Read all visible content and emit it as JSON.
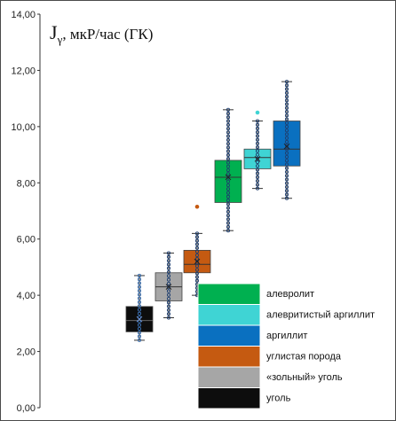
{
  "chart_data": {
    "type": "box",
    "title": {
      "symbol": "J",
      "subscript": "γ",
      "rest": ", мкР/час (ГК)"
    },
    "ylim": [
      0,
      14
    ],
    "yticks": [
      "0,00",
      "2,00",
      "4,00",
      "6,00",
      "8,00",
      "10,00",
      "12,00",
      "14,00"
    ],
    "grid": false,
    "legend_position": "bottom-right",
    "series": [
      {
        "name": "уголь",
        "color": "#0d0d0d",
        "whisker_low": 2.4,
        "q1": 2.7,
        "median": 3.1,
        "q3": 3.6,
        "whisker_high": 4.7,
        "mean": 3.15,
        "outliers": []
      },
      {
        "name": "«зольный» уголь",
        "color": "#a6a6a6",
        "whisker_low": 3.2,
        "q1": 3.8,
        "median": 4.3,
        "q3": 4.8,
        "whisker_high": 5.5,
        "mean": 4.3,
        "outliers": []
      },
      {
        "name": "углистая порода",
        "color": "#c55a11",
        "whisker_low": 4.0,
        "q1": 4.8,
        "median": 5.1,
        "q3": 5.6,
        "whisker_high": 6.2,
        "mean": 5.2,
        "outliers": [
          7.15
        ]
      },
      {
        "name": "алевролит",
        "color": "#00b050",
        "whisker_low": 6.3,
        "q1": 7.3,
        "median": 8.2,
        "q3": 8.8,
        "whisker_high": 10.6,
        "mean": 8.2,
        "outliers": []
      },
      {
        "name": "алевритистый аргиллит",
        "color": "#3fd4d4",
        "whisker_low": 7.8,
        "q1": 8.5,
        "median": 8.9,
        "q3": 9.2,
        "whisker_high": 10.2,
        "mean": 8.85,
        "outliers": [
          10.5
        ]
      },
      {
        "name": "аргиллит",
        "color": "#0a70c0",
        "whisker_low": 7.45,
        "q1": 8.6,
        "median": 9.2,
        "q3": 10.2,
        "whisker_high": 11.6,
        "mean": 9.3,
        "outliers": []
      }
    ],
    "legend_order": [
      {
        "name": "алевролит",
        "color": "#00b050"
      },
      {
        "name": "алевритистый аргиллит",
        "color": "#3fd4d4"
      },
      {
        "name": "аргиллит",
        "color": "#0a70c0"
      },
      {
        "name": "углистая порода",
        "color": "#c55a11"
      },
      {
        "name": "«зольный» уголь",
        "color": "#a6a6a6"
      },
      {
        "name": "уголь",
        "color": "#0d0d0d"
      }
    ]
  }
}
